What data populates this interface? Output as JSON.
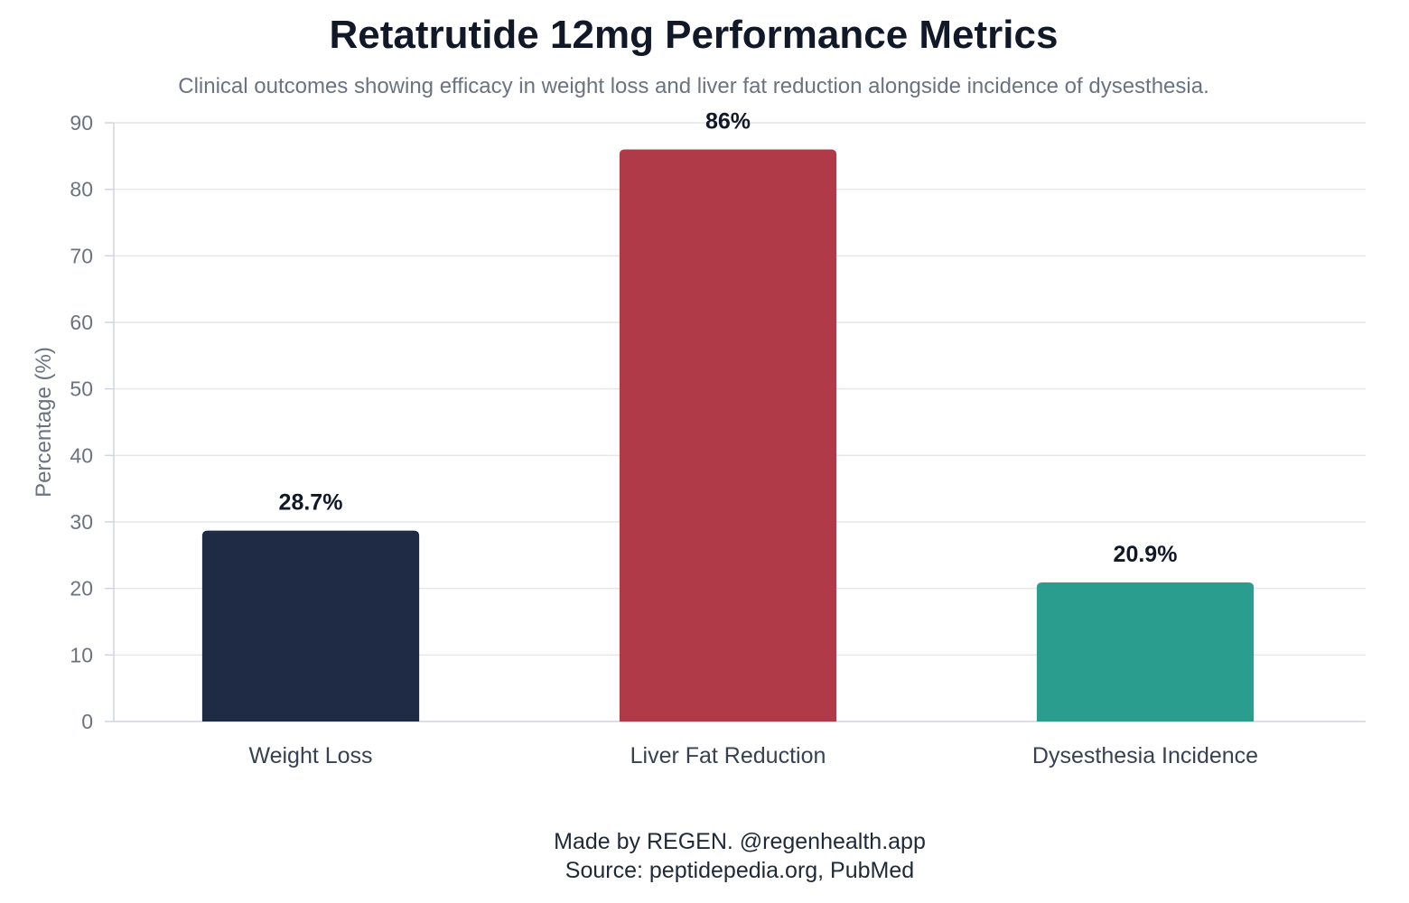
{
  "chart_data": {
    "type": "bar",
    "title": "Retatrutide 12mg Performance Metrics",
    "subtitle": "Clinical outcomes showing efficacy in weight loss and liver fat reduction alongside incidence of dysesthesia.",
    "categories": [
      "Weight Loss",
      "Liver Fat Reduction",
      "Dysesthesia Incidence"
    ],
    "values": [
      28.7,
      86,
      20.9
    ],
    "value_labels": [
      "28.7%",
      "86%",
      "20.9%"
    ],
    "colors": [
      "#1f2a44",
      "#b03a48",
      "#2a9d8f"
    ],
    "xlabel": "",
    "ylabel": "Percentage (%)",
    "ylim": [
      0,
      90
    ],
    "yticks": [
      0,
      10,
      20,
      30,
      40,
      50,
      60,
      70,
      80,
      90
    ],
    "grid": true,
    "legend": "none"
  },
  "footer": {
    "credit": "Made by REGEN. @regenhealth.app",
    "source": "Source: peptidepedia.org, PubMed"
  }
}
